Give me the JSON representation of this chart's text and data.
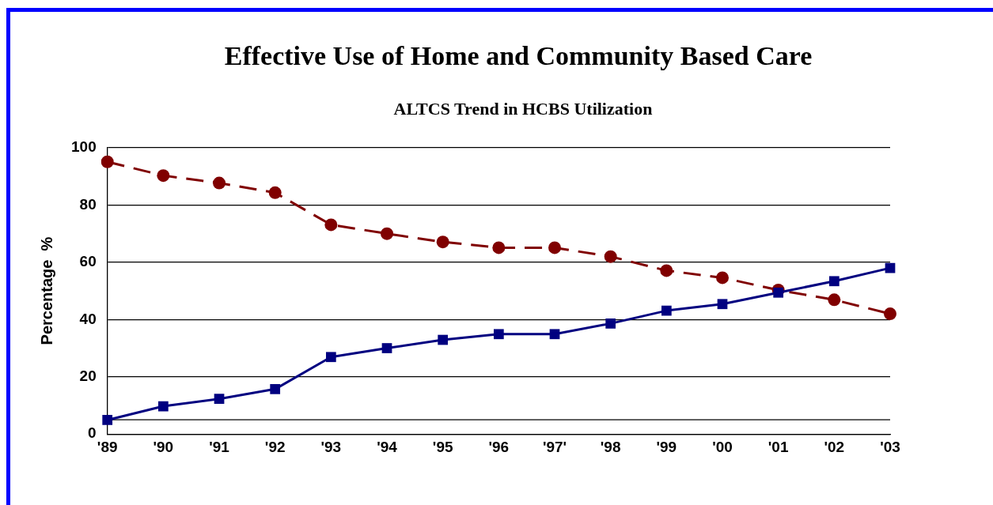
{
  "chart_data": {
    "type": "line",
    "title": "Effective Use of Home and Community Based Care",
    "subtitle": "ALTCS Trend in HCBS Utilization",
    "ylabel": "Percentage  %",
    "categories": [
      "'89",
      "'90",
      "'91",
      "'92",
      "'93",
      "'94",
      "'95",
      "'96",
      "'97'",
      "'98",
      "'99",
      "'00",
      "'01",
      "'02",
      "'03"
    ],
    "series": [
      {
        "color": "#800000",
        "line_style": "dashed",
        "marker": "circle",
        "values": [
          95.1,
          90.3,
          87.7,
          84.3,
          73.1,
          70,
          67.1,
          65.1,
          65.1,
          62,
          57.1,
          54.6,
          50.3,
          46.9,
          42
        ]
      },
      {
        "color": "#000080",
        "line_style": "solid",
        "marker": "square",
        "values": [
          4.9,
          9.7,
          12.3,
          15.7,
          26.9,
          30,
          32.9,
          34.9,
          34.9,
          38.6,
          43.1,
          45.4,
          49.4,
          53.4,
          58
        ]
      }
    ],
    "ylim": [
      0,
      100
    ],
    "yticks": [
      0,
      20,
      40,
      60,
      80,
      100
    ],
    "grid": "y",
    "legend": false,
    "ref_lines": [
      {
        "axis": "y",
        "value": 5
      }
    ]
  }
}
